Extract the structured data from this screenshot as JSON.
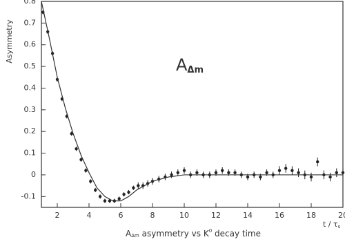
{
  "chart_data": {
    "type": "scatter",
    "y_label": "Asymmetry",
    "x_label": [
      "A",
      "Δm",
      " asymmetry vs K",
      "0",
      " decay time"
    ],
    "x_unit": {
      "text": "t / τ",
      "subscript": "s"
    },
    "annotation": {
      "text": "A",
      "subscript": "Δm"
    },
    "xlim": [
      1,
      20
    ],
    "ylim": [
      -0.15,
      0.8
    ],
    "xticks": [
      2,
      4,
      6,
      8,
      10,
      12,
      14,
      16,
      18,
      20
    ],
    "yticks": [
      -0.1,
      0,
      0.1,
      0.2,
      0.3,
      0.4,
      0.5,
      0.6,
      0.7,
      0.8
    ],
    "series": [
      {
        "type": "scatter",
        "color": "#222222",
        "x": [
          1.1,
          1.4,
          1.7,
          2.0,
          2.3,
          2.6,
          2.9,
          3.2,
          3.5,
          3.8,
          4.1,
          4.4,
          4.7,
          5.0,
          5.3,
          5.6,
          5.9,
          6.2,
          6.5,
          6.8,
          7.1,
          7.4,
          7.7,
          8.0,
          8.4,
          8.8,
          9.2,
          9.6,
          10.0,
          10.4,
          10.8,
          11.2,
          11.6,
          12.0,
          12.4,
          12.8,
          13.2,
          13.6,
          14.0,
          14.4,
          14.8,
          15.2,
          15.6,
          16.0,
          16.4,
          16.8,
          17.2,
          17.6,
          18.0,
          18.4,
          18.8,
          19.2,
          19.6,
          20.0
        ],
        "values": [
          0.75,
          0.66,
          0.56,
          0.44,
          0.35,
          0.27,
          0.19,
          0.12,
          0.07,
          0.02,
          -0.03,
          -0.07,
          -0.1,
          -0.12,
          -0.12,
          -0.12,
          -0.11,
          -0.09,
          -0.08,
          -0.06,
          -0.05,
          -0.05,
          -0.04,
          -0.03,
          -0.02,
          -0.01,
          0,
          0.01,
          0.02,
          0,
          0.01,
          0,
          0,
          0.01,
          0.02,
          0.01,
          0.01,
          0,
          -0.01,
          0,
          -0.01,
          0.01,
          0,
          0.02,
          0.03,
          0.02,
          0.01,
          0,
          -0.01,
          0.06,
          0,
          -0.01,
          0.01,
          0.01
        ],
        "errors": [
          0.01,
          0.01,
          0.01,
          0.01,
          0.01,
          0.01,
          0.01,
          0.01,
          0.01,
          0.01,
          0.01,
          0.01,
          0.01,
          0.01,
          0.01,
          0.01,
          0.01,
          0.01,
          0.01,
          0.01,
          0.015,
          0.015,
          0.015,
          0.015,
          0.015,
          0.015,
          0.015,
          0.015,
          0.015,
          0.015,
          0.015,
          0.015,
          0.015,
          0.015,
          0.015,
          0.015,
          0.015,
          0.015,
          0.015,
          0.015,
          0.015,
          0.015,
          0.015,
          0.02,
          0.02,
          0.02,
          0.02,
          0.02,
          0.02,
          0.02,
          0.02,
          0.02,
          0.02,
          0.02
        ]
      },
      {
        "type": "line",
        "color": "#333333",
        "x": [
          1,
          1.5,
          2,
          2.5,
          3,
          3.5,
          4,
          4.5,
          5,
          5.5,
          6,
          6.5,
          7,
          7.5,
          8,
          9,
          10,
          12,
          14,
          16,
          18,
          20
        ],
        "values": [
          0.8,
          0.63,
          0.45,
          0.31,
          0.19,
          0.09,
          0.01,
          -0.06,
          -0.1,
          -0.12,
          -0.12,
          -0.1,
          -0.07,
          -0.05,
          -0.03,
          -0.01,
          0,
          0,
          0,
          0,
          0,
          0
        ]
      }
    ]
  }
}
